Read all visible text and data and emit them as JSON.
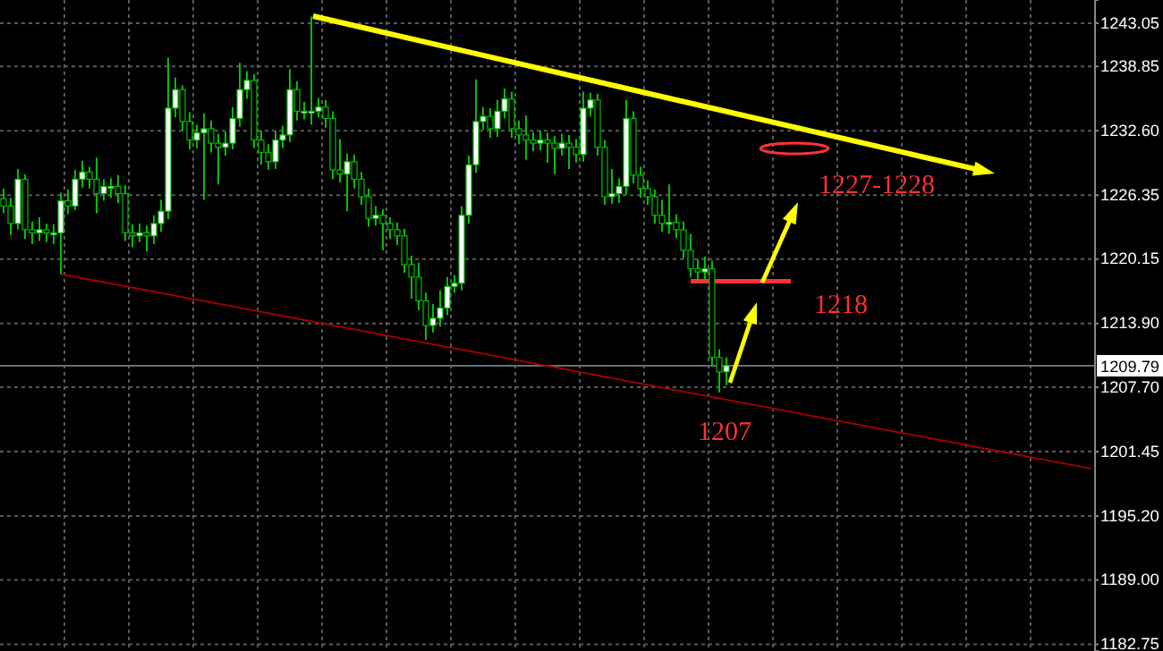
{
  "chart_data": {
    "type": "candlestick",
    "tick_labels": "y",
    "grid": true,
    "ylim": [
      1182.1,
      1245.3
    ],
    "yticks": [
      {
        "value": 1243.05,
        "label": "1243.05"
      },
      {
        "value": 1238.85,
        "label": "1238.85"
      },
      {
        "value": 1232.6,
        "label": "1232.60"
      },
      {
        "value": 1226.35,
        "label": "1226.35"
      },
      {
        "value": 1220.15,
        "label": "1220.15"
      },
      {
        "value": 1213.9,
        "label": "1213.90"
      },
      {
        "value": 1207.7,
        "label": "1207.70"
      },
      {
        "value": 1201.45,
        "label": "1201.45"
      },
      {
        "value": 1195.2,
        "label": "1195.20"
      },
      {
        "value": 1189.0,
        "label": "1189.00"
      },
      {
        "value": 1182.75,
        "label": "1182.75"
      }
    ],
    "categories": [
      null,
      null,
      null,
      null,
      null,
      null,
      null,
      null,
      null,
      null,
      null,
      null,
      null,
      null,
      null,
      null,
      null,
      null,
      null,
      null,
      null,
      null,
      null,
      null,
      null,
      null,
      null,
      null,
      null,
      null,
      null,
      null,
      null,
      null,
      null,
      null,
      null,
      null,
      null,
      null,
      null,
      null,
      null,
      null,
      null,
      null,
      null,
      null,
      null,
      null,
      null,
      null,
      null,
      null,
      null,
      null,
      null,
      null,
      null,
      null,
      null,
      null,
      null,
      null,
      null,
      null,
      null,
      null,
      null,
      null,
      null,
      null,
      null,
      null,
      null,
      null,
      null,
      null,
      null,
      null,
      null,
      null,
      null,
      null,
      null,
      null,
      null,
      null,
      null,
      null,
      null,
      null,
      null,
      null,
      null,
      null,
      null,
      null,
      null,
      null,
      null,
      null,
      null,
      null,
      null,
      null,
      null,
      null,
      null,
      null,
      null,
      null,
      null,
      null,
      null,
      null,
      null,
      null,
      null,
      null,
      null,
      null,
      null,
      null,
      null,
      null,
      null,
      null,
      null,
      null,
      null,
      null,
      null,
      null,
      null,
      null,
      null,
      null,
      null,
      null,
      null,
      null,
      null,
      null,
      null,
      null,
      null,
      null,
      null,
      null,
      null,
      null,
      null
    ],
    "ref_lines": [
      {
        "axis": "y",
        "value": 1209.79,
        "label": "1209.79",
        "color": "#5f6f80"
      }
    ],
    "annotations": [
      "1227-1228",
      "1218",
      "1207"
    ],
    "series": [
      {
        "type": "line",
        "color": "#a00000",
        "values": [
          null,
          null,
          null,
          null,
          null,
          null,
          null,
          null,
          1218.7,
          null,
          null,
          null,
          null,
          null,
          null,
          null,
          null,
          null,
          null,
          null,
          null,
          null,
          null,
          null,
          null,
          null,
          null,
          null,
          null,
          null,
          null,
          null,
          null,
          null,
          null,
          null,
          null,
          null,
          null,
          null,
          null,
          null,
          null,
          null,
          null,
          null,
          null,
          null,
          null,
          null,
          null,
          null,
          null,
          null,
          null,
          null,
          null,
          null,
          null,
          null,
          null,
          null,
          null,
          null,
          null,
          null,
          null,
          null,
          null,
          null,
          null,
          null,
          null,
          null,
          null,
          null,
          null,
          null,
          null,
          null,
          null,
          null,
          null,
          null,
          null,
          null,
          null,
          null,
          null,
          null,
          null,
          null,
          null,
          null,
          null,
          null,
          null,
          null,
          null,
          null,
          null,
          null,
          null,
          null,
          null,
          null,
          null,
          null,
          null,
          null,
          null,
          null,
          null,
          null,
          null,
          null,
          null,
          null,
          null,
          null,
          null,
          null,
          null,
          null,
          null,
          null,
          null,
          null,
          null,
          null,
          null,
          null,
          null,
          null,
          null,
          null,
          null,
          null,
          null,
          null,
          null,
          null,
          null,
          null,
          null,
          null,
          null,
          null,
          null,
          null,
          null,
          null,
          1199.8
        ]
      },
      {
        "type": "line",
        "color": "#ff3333",
        "values": [
          null,
          null,
          null,
          null,
          null,
          null,
          null,
          null,
          null,
          null,
          null,
          null,
          null,
          null,
          null,
          null,
          null,
          null,
          null,
          null,
          null,
          null,
          null,
          null,
          null,
          null,
          null,
          null,
          null,
          null,
          null,
          null,
          null,
          null,
          null,
          null,
          null,
          null,
          null,
          null,
          null,
          null,
          null,
          null,
          null,
          null,
          null,
          null,
          null,
          null,
          null,
          null,
          null,
          null,
          null,
          null,
          null,
          null,
          null,
          null,
          null,
          null,
          null,
          null,
          null,
          null,
          null,
          null,
          null,
          null,
          null,
          null,
          null,
          null,
          null,
          null,
          null,
          null,
          null,
          null,
          null,
          null,
          null,
          null,
          null,
          null,
          null,
          null,
          null,
          null,
          null,
          null,
          null,
          null,
          null,
          null,
          1218,
          null,
          null,
          null,
          null,
          null,
          null,
          null,
          null,
          null,
          null,
          null,
          null,
          null,
          1218,
          null,
          null,
          null,
          null,
          null,
          null,
          null,
          null,
          null,
          null,
          null,
          null,
          null,
          null,
          null,
          null,
          null,
          null,
          null,
          null,
          null,
          null,
          null,
          null,
          null,
          null,
          null,
          null,
          null,
          null,
          null,
          null,
          null,
          null,
          null,
          null,
          null,
          null,
          null,
          null,
          null,
          null
        ]
      },
      {
        "type": "candlestick",
        "color": "#00c000",
        "ohlc": [
          [
            1226.0,
            1227.0,
            1224.6,
            1225.3
          ],
          [
            1225.3,
            1226.1,
            1222.5,
            1223.6
          ],
          [
            1223.6,
            1228.9,
            1223.0,
            1227.9
          ],
          [
            1227.9,
            1228.4,
            1222.1,
            1223.0
          ],
          [
            1223.0,
            1223.8,
            1221.6,
            1222.7
          ],
          [
            1222.7,
            1224.2,
            1221.9,
            1223.0
          ],
          [
            1223.0,
            1223.6,
            1221.8,
            1222.7
          ],
          [
            1222.7,
            1223.5,
            1221.6,
            1222.7
          ],
          [
            1222.7,
            1226.6,
            1218.7,
            1225.8
          ],
          [
            1225.8,
            1226.9,
            1224.5,
            1225.3
          ],
          [
            1225.3,
            1228.8,
            1224.9,
            1227.9
          ],
          [
            1227.9,
            1229.7,
            1227.1,
            1228.6
          ],
          [
            1228.6,
            1229.1,
            1227.0,
            1227.9
          ],
          [
            1227.9,
            1230.0,
            1224.6,
            1226.5
          ],
          [
            1226.5,
            1227.9,
            1225.8,
            1227.2
          ],
          [
            1227.2,
            1228.0,
            1226.1,
            1227.2
          ],
          [
            1227.2,
            1228.3,
            1225.6,
            1226.5
          ],
          [
            1226.5,
            1227.3,
            1221.9,
            1222.7
          ],
          [
            1222.7,
            1223.5,
            1221.3,
            1222.4
          ],
          [
            1222.4,
            1223.6,
            1221.8,
            1222.7
          ],
          [
            1222.7,
            1223.4,
            1220.9,
            1222.4
          ],
          [
            1222.4,
            1224.4,
            1221.6,
            1223.6
          ],
          [
            1223.6,
            1225.9,
            1222.8,
            1224.8
          ],
          [
            1224.8,
            1239.7,
            1224.0,
            1234.8
          ],
          [
            1234.8,
            1237.8,
            1233.9,
            1236.6
          ],
          [
            1236.6,
            1237.0,
            1232.6,
            1233.5
          ],
          [
            1233.5,
            1234.4,
            1230.8,
            1231.7
          ],
          [
            1231.7,
            1233.2,
            1230.9,
            1232.4
          ],
          [
            1232.4,
            1234.3,
            1225.9,
            1232.8
          ],
          [
            1232.8,
            1233.6,
            1230.5,
            1231.4
          ],
          [
            1231.4,
            1232.3,
            1227.4,
            1231.0
          ],
          [
            1231.0,
            1232.5,
            1230.2,
            1231.4
          ],
          [
            1231.4,
            1234.9,
            1230.8,
            1233.8
          ],
          [
            1233.8,
            1239.2,
            1233.0,
            1236.6
          ],
          [
            1236.6,
            1238.4,
            1235.7,
            1237.5
          ],
          [
            1237.5,
            1238.1,
            1230.9,
            1231.7
          ],
          [
            1231.7,
            1232.6,
            1229.3,
            1230.5
          ],
          [
            1230.5,
            1231.3,
            1228.8,
            1229.6
          ],
          [
            1229.6,
            1232.6,
            1228.9,
            1231.7
          ],
          [
            1231.7,
            1233.1,
            1230.9,
            1232.2
          ],
          [
            1232.2,
            1238.6,
            1231.5,
            1236.6
          ],
          [
            1236.6,
            1237.4,
            1233.6,
            1234.5
          ],
          [
            1234.5,
            1235.4,
            1233.7,
            1234.5
          ],
          [
            1234.5,
            1243.7,
            1233.2,
            1234.5
          ],
          [
            1234.5,
            1235.8,
            1233.9,
            1234.9
          ],
          [
            1234.9,
            1235.6,
            1232.9,
            1233.8
          ],
          [
            1233.8,
            1234.5,
            1227.9,
            1228.8
          ],
          [
            1228.8,
            1231.8,
            1227.6,
            1228.4
          ],
          [
            1228.4,
            1230.4,
            1224.8,
            1229.6
          ],
          [
            1229.6,
            1230.3,
            1227.0,
            1227.9
          ],
          [
            1227.9,
            1228.6,
            1225.4,
            1226.2
          ],
          [
            1226.2,
            1227.0,
            1223.3,
            1224.1
          ],
          [
            1224.1,
            1225.3,
            1223.4,
            1224.4
          ],
          [
            1224.4,
            1225.0,
            1221.0,
            1223.6
          ],
          [
            1223.6,
            1224.2,
            1222.1,
            1223.0
          ],
          [
            1223.0,
            1223.7,
            1221.5,
            1222.4
          ],
          [
            1222.4,
            1223.1,
            1218.8,
            1219.6
          ],
          [
            1219.6,
            1220.5,
            1216.3,
            1218.4
          ],
          [
            1218.4,
            1219.8,
            1215.2,
            1216.1
          ],
          [
            1216.1,
            1216.9,
            1212.3,
            1213.7
          ],
          [
            1213.7,
            1215.8,
            1213.0,
            1214.4
          ],
          [
            1214.4,
            1217.1,
            1213.6,
            1215.4
          ],
          [
            1215.4,
            1218.4,
            1214.7,
            1217.5
          ],
          [
            1217.5,
            1218.6,
            1216.9,
            1217.8
          ],
          [
            1217.8,
            1225.3,
            1217.1,
            1224.4
          ],
          [
            1224.4,
            1230.2,
            1223.6,
            1229.3
          ],
          [
            1229.3,
            1237.6,
            1228.5,
            1233.5
          ],
          [
            1233.5,
            1234.9,
            1232.7,
            1234.0
          ],
          [
            1234.0,
            1234.8,
            1231.9,
            1232.8
          ],
          [
            1232.8,
            1235.6,
            1232.0,
            1234.5
          ],
          [
            1234.5,
            1236.7,
            1233.8,
            1235.7
          ],
          [
            1235.7,
            1236.4,
            1231.9,
            1232.8
          ],
          [
            1232.8,
            1233.6,
            1231.3,
            1232.2
          ],
          [
            1232.2,
            1234.1,
            1229.8,
            1231.7
          ],
          [
            1231.7,
            1232.5,
            1230.6,
            1231.4
          ],
          [
            1231.4,
            1232.6,
            1230.7,
            1231.7
          ],
          [
            1231.7,
            1232.4,
            1229.5,
            1231.4
          ],
          [
            1231.4,
            1232.1,
            1228.4,
            1230.9
          ],
          [
            1230.9,
            1232.3,
            1230.2,
            1231.4
          ],
          [
            1231.4,
            1232.2,
            1228.9,
            1231.0
          ],
          [
            1231.0,
            1231.8,
            1229.5,
            1230.3
          ],
          [
            1230.3,
            1236.4,
            1229.6,
            1234.8
          ],
          [
            1234.8,
            1236.3,
            1234.0,
            1235.6
          ],
          [
            1235.6,
            1236.2,
            1230.2,
            1231.0
          ],
          [
            1231.0,
            1231.7,
            1225.4,
            1226.2
          ],
          [
            1226.2,
            1228.9,
            1225.5,
            1226.5
          ],
          [
            1226.5,
            1228.0,
            1225.6,
            1227.2
          ],
          [
            1227.2,
            1235.6,
            1226.4,
            1233.8
          ],
          [
            1233.8,
            1234.5,
            1227.5,
            1228.3
          ],
          [
            1228.3,
            1229.1,
            1226.1,
            1227.0
          ],
          [
            1227.0,
            1227.8,
            1225.4,
            1226.2
          ],
          [
            1226.2,
            1226.9,
            1223.6,
            1224.4
          ],
          [
            1224.4,
            1225.9,
            1222.8,
            1223.6
          ],
          [
            1223.6,
            1227.4,
            1222.6,
            1223.7
          ],
          [
            1223.7,
            1224.5,
            1222.2,
            1223.0
          ],
          [
            1223.0,
            1223.8,
            1220.2,
            1221.0
          ],
          [
            1221.0,
            1222.6,
            1218.4,
            1219.2
          ],
          [
            1219.2,
            1220.1,
            1218.0,
            1218.9
          ],
          [
            1218.9,
            1220.4,
            1218.1,
            1219.2
          ],
          [
            1219.2,
            1220.0,
            1209.8,
            1210.6
          ],
          [
            1210.6,
            1211.4,
            1207.2,
            1209.2
          ],
          [
            1209.2,
            1210.6,
            1207.9,
            1209.8
          ],
          null,
          null,
          null,
          null,
          null,
          null,
          null,
          null,
          null,
          null,
          null,
          null,
          null,
          null,
          null,
          null,
          null,
          null,
          null,
          null,
          null,
          null,
          null,
          null,
          null,
          null,
          null,
          null,
          null,
          null,
          null,
          null,
          null,
          null,
          null,
          null,
          null,
          null,
          null,
          null,
          null,
          null,
          null,
          null,
          null,
          null,
          null,
          null,
          null,
          null,
          null
        ]
      }
    ]
  }
}
